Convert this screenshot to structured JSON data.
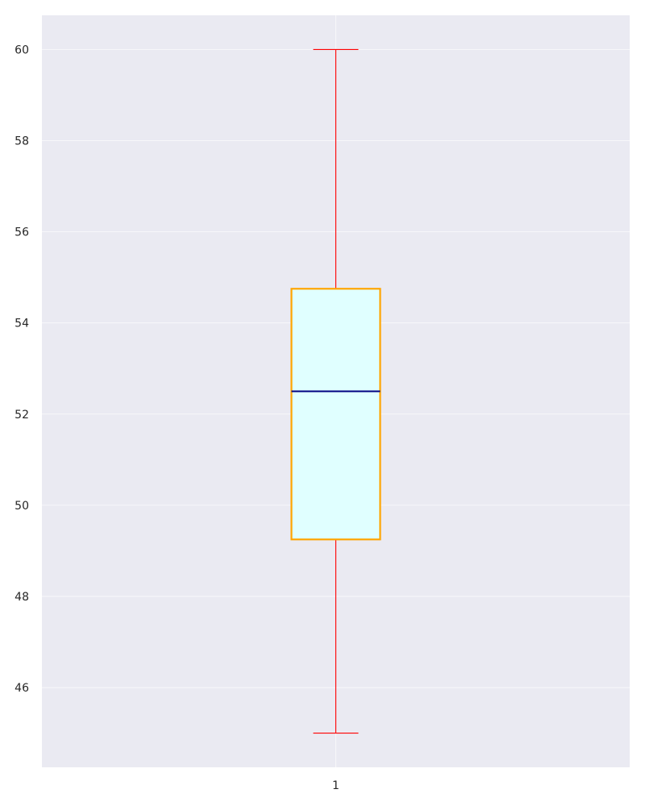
{
  "chart_data": {
    "type": "box",
    "categories": [
      "1"
    ],
    "boxes": [
      {
        "category": "1",
        "whisker_low": 45,
        "q1": 49.25,
        "median": 52.5,
        "q3": 54.75,
        "whisker_high": 60
      }
    ],
    "title": "",
    "xlabel": "",
    "ylabel": "",
    "ylim": [
      44.25,
      60.75
    ],
    "yticks": [
      46,
      48,
      50,
      52,
      54,
      56,
      58,
      60
    ],
    "grid": true,
    "colors": {
      "plot_background": "#eaeaf2",
      "gridline": "#ffffff",
      "box_fill": "#e0ffff",
      "box_edge": "#ffa500",
      "median": "#000080",
      "whisker": "#ff0000",
      "tick_text": "#262626"
    }
  }
}
